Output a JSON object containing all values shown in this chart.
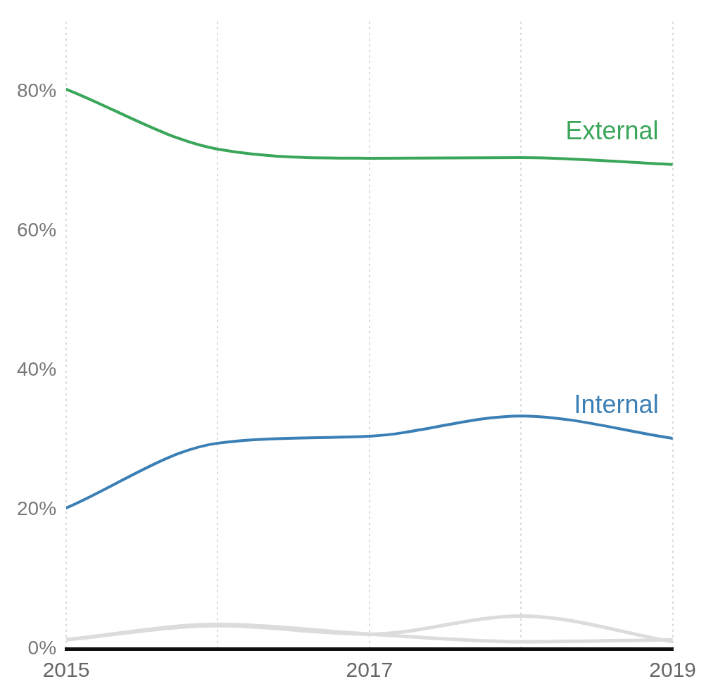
{
  "chart_data": {
    "type": "line",
    "x": [
      2015,
      2016,
      2017,
      2018,
      2019
    ],
    "series": [
      {
        "name": "External",
        "color": "#3aa65a",
        "values": [
          80.3,
          71.7,
          70.4,
          70.5,
          69.5
        ]
      },
      {
        "name": "Internal",
        "color": "#3a7fb5",
        "values": [
          20.2,
          29.5,
          30.5,
          33.4,
          30.2
        ]
      },
      {
        "color": "#dcdcdc",
        "values": [
          1.3,
          3.3,
          2.1,
          4.7,
          1.0
        ]
      },
      {
        "color": "#dcdcdc",
        "values": [
          1.3,
          3.5,
          2.1,
          1.0,
          1.3
        ]
      }
    ],
    "xlim": [
      2015,
      2019
    ],
    "xticks": [
      2015,
      {
        "value": 2016,
        "label": null
      },
      2017,
      {
        "value": 2018,
        "label": null
      },
      2019
    ],
    "ylim": [
      0,
      90
    ],
    "yticks": [
      {
        "value": 0,
        "label": "0%"
      },
      {
        "value": 20,
        "label": "20%"
      },
      {
        "value": 40,
        "label": "40%"
      },
      {
        "value": 60,
        "label": "60%"
      },
      {
        "value": 80,
        "label": "80%"
      }
    ],
    "grid": "x",
    "legend": false,
    "marker": "none",
    "line_style": "solid"
  }
}
